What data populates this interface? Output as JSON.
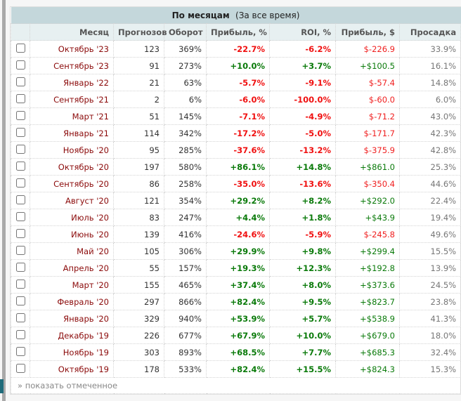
{
  "title": "По месяцам",
  "subtitle": "(За все время)",
  "columns": [
    "Месяц",
    "Прогнозов",
    "Оборот",
    "Прибыль, %",
    "ROI, %",
    "Прибыль, $",
    "Просадка"
  ],
  "rows": [
    {
      "month": "Октябрь '23",
      "bets": "123",
      "turnover": "369%",
      "profit_pct": "-22.7%",
      "roi": "-6.2%",
      "profit_usd": "$-226.9",
      "drawdown": "33.9%"
    },
    {
      "month": "Сентябрь '23",
      "bets": "91",
      "turnover": "273%",
      "profit_pct": "+10.0%",
      "roi": "+3.7%",
      "profit_usd": "+$100.5",
      "drawdown": "16.1%"
    },
    {
      "month": "Январь '22",
      "bets": "21",
      "turnover": "63%",
      "profit_pct": "-5.7%",
      "roi": "-9.1%",
      "profit_usd": "$-57.4",
      "drawdown": "14.8%"
    },
    {
      "month": "Сентябрь '21",
      "bets": "2",
      "turnover": "6%",
      "profit_pct": "-6.0%",
      "roi": "-100.0%",
      "profit_usd": "$-60.0",
      "drawdown": "6.0%"
    },
    {
      "month": "Март '21",
      "bets": "51",
      "turnover": "145%",
      "profit_pct": "-7.1%",
      "roi": "-4.9%",
      "profit_usd": "$-71.2",
      "drawdown": "43.0%"
    },
    {
      "month": "Январь '21",
      "bets": "114",
      "turnover": "342%",
      "profit_pct": "-17.2%",
      "roi": "-5.0%",
      "profit_usd": "$-171.7",
      "drawdown": "42.3%"
    },
    {
      "month": "Ноябрь '20",
      "bets": "95",
      "turnover": "285%",
      "profit_pct": "-37.6%",
      "roi": "-13.2%",
      "profit_usd": "$-375.9",
      "drawdown": "42.8%"
    },
    {
      "month": "Октябрь '20",
      "bets": "197",
      "turnover": "580%",
      "profit_pct": "+86.1%",
      "roi": "+14.8%",
      "profit_usd": "+$861.0",
      "drawdown": "25.3%"
    },
    {
      "month": "Сентябрь '20",
      "bets": "86",
      "turnover": "258%",
      "profit_pct": "-35.0%",
      "roi": "-13.6%",
      "profit_usd": "$-350.4",
      "drawdown": "44.6%"
    },
    {
      "month": "Август '20",
      "bets": "121",
      "turnover": "354%",
      "profit_pct": "+29.2%",
      "roi": "+8.2%",
      "profit_usd": "+$292.0",
      "drawdown": "22.4%"
    },
    {
      "month": "Июль '20",
      "bets": "83",
      "turnover": "247%",
      "profit_pct": "+4.4%",
      "roi": "+1.8%",
      "profit_usd": "+$43.9",
      "drawdown": "19.4%"
    },
    {
      "month": "Июнь '20",
      "bets": "139",
      "turnover": "416%",
      "profit_pct": "-24.6%",
      "roi": "-5.9%",
      "profit_usd": "$-245.8",
      "drawdown": "49.6%"
    },
    {
      "month": "Май '20",
      "bets": "105",
      "turnover": "306%",
      "profit_pct": "+29.9%",
      "roi": "+9.8%",
      "profit_usd": "+$299.4",
      "drawdown": "15.5%"
    },
    {
      "month": "Апрель '20",
      "bets": "55",
      "turnover": "157%",
      "profit_pct": "+19.3%",
      "roi": "+12.3%",
      "profit_usd": "+$192.8",
      "drawdown": "13.9%"
    },
    {
      "month": "Март '20",
      "bets": "155",
      "turnover": "465%",
      "profit_pct": "+37.4%",
      "roi": "+8.0%",
      "profit_usd": "+$373.6",
      "drawdown": "24.5%"
    },
    {
      "month": "Февраль '20",
      "bets": "297",
      "turnover": "866%",
      "profit_pct": "+82.4%",
      "roi": "+9.5%",
      "profit_usd": "+$823.7",
      "drawdown": "23.8%"
    },
    {
      "month": "Январь '20",
      "bets": "329",
      "turnover": "940%",
      "profit_pct": "+53.9%",
      "roi": "+5.7%",
      "profit_usd": "+$538.9",
      "drawdown": "41.3%"
    },
    {
      "month": "Декабрь '19",
      "bets": "226",
      "turnover": "677%",
      "profit_pct": "+67.9%",
      "roi": "+10.0%",
      "profit_usd": "+$679.0",
      "drawdown": "18.0%"
    },
    {
      "month": "Ноябрь '19",
      "bets": "303",
      "turnover": "893%",
      "profit_pct": "+68.5%",
      "roi": "+7.7%",
      "profit_usd": "+$685.3",
      "drawdown": "32.4%"
    },
    {
      "month": "Октябрь '19",
      "bets": "178",
      "turnover": "533%",
      "profit_pct": "+82.4%",
      "roi": "+15.5%",
      "profit_usd": "+$824.3",
      "drawdown": "15.3%"
    }
  ],
  "footer_link": "» показать отмеченное",
  "colors": {
    "positive": "#0a7a0a",
    "negative": "#f01010",
    "month": "#8b0a0a",
    "header_bg": "#c4d7db"
  }
}
